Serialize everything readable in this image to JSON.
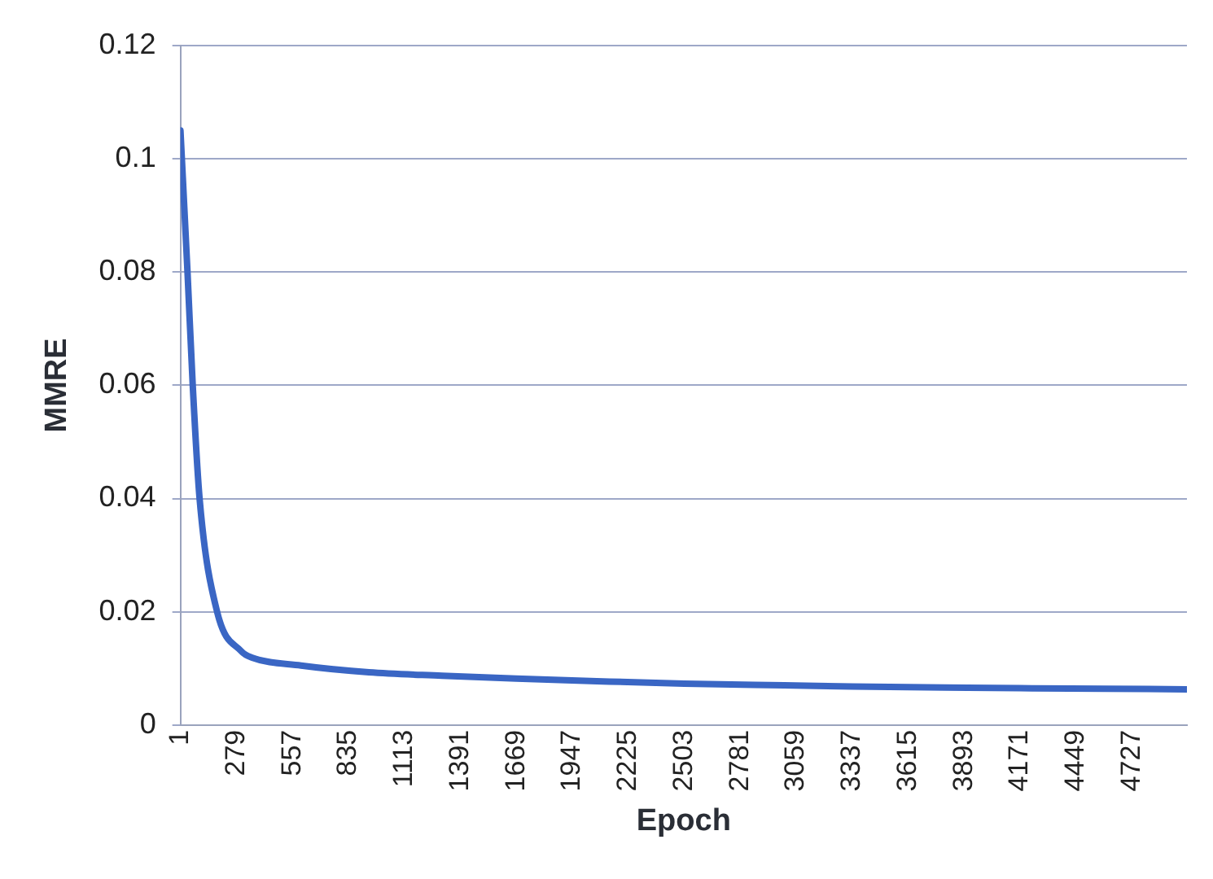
{
  "chart_data": {
    "type": "line",
    "xlabel": "Epoch",
    "ylabel": "MMRE",
    "x": [
      1,
      36,
      62,
      96,
      183,
      304,
      356,
      600,
      937,
      1300,
      1669,
      2100,
      2503,
      3000,
      3337,
      3800,
      4171,
      4600,
      5000
    ],
    "series": [
      {
        "color": "#3a66c4",
        "values": [
          0.105,
          0.08,
          0.06,
          0.04,
          0.02,
          0.013,
          0.0119,
          0.0105,
          0.0093,
          0.0087,
          0.0082,
          0.0077,
          0.0073,
          0.007,
          0.0068,
          0.0066,
          0.0065,
          0.0064,
          0.0063
        ]
      }
    ],
    "xlim": [
      1,
      5000
    ],
    "xticks": [
      1,
      279,
      557,
      835,
      1113,
      1391,
      1669,
      1947,
      2225,
      2503,
      2781,
      3059,
      3337,
      3615,
      3893,
      4171,
      4449,
      4727
    ],
    "ylim": [
      0,
      0.12
    ],
    "yticks": [
      0,
      0.02,
      0.04,
      0.06,
      0.08,
      0.1,
      0.12
    ],
    "grid": "y",
    "legend": false,
    "marker": "none",
    "line_style": "solid"
  }
}
